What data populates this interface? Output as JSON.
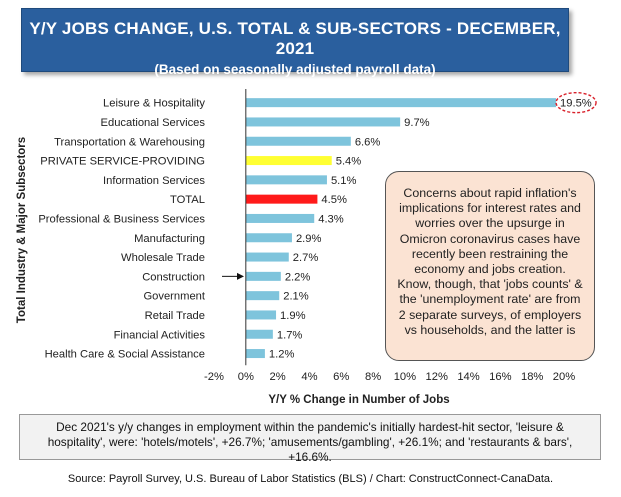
{
  "header": {
    "title": "Y/Y JOBS CHANGE, U.S. TOTAL & SUB-SECTORS - DECEMBER, 2021",
    "subtitle": "(Based on seasonally adjusted payroll data)"
  },
  "chart_data": {
    "type": "bar",
    "orientation": "horizontal",
    "categories": [
      "Leisure & Hospitality",
      "Educational Services",
      "Transportation & Warehousing",
      "PRIVATE SERVICE-PROVIDING",
      "Information Services",
      "TOTAL",
      "Professional & Business Services",
      "Manufacturing",
      "Wholesale Trade",
      "Construction",
      "Government",
      "Retail Trade",
      "Financial Activities",
      "Health Care & Social Assistance"
    ],
    "values": [
      19.5,
      9.7,
      6.6,
      5.4,
      5.1,
      4.5,
      4.3,
      2.9,
      2.7,
      2.2,
      2.1,
      1.9,
      1.7,
      1.2
    ],
    "value_labels": [
      "19.5%",
      "9.7%",
      "6.6%",
      "5.4%",
      "5.1%",
      "4.5%",
      "4.3%",
      "2.9%",
      "2.7%",
      "2.2%",
      "2.1%",
      "1.9%",
      "1.7%",
      "1.2%"
    ],
    "bar_colors": [
      "#7ec4dc",
      "#7ec4dc",
      "#7ec4dc",
      "#ffff33",
      "#7ec4dc",
      "#ff1a1a",
      "#7ec4dc",
      "#7ec4dc",
      "#7ec4dc",
      "#7ec4dc",
      "#7ec4dc",
      "#7ec4dc",
      "#7ec4dc",
      "#7ec4dc"
    ],
    "xlim": [
      -2,
      20
    ],
    "xticks": [
      "-2%",
      "0%",
      "2%",
      "4%",
      "6%",
      "8%",
      "10%",
      "12%",
      "14%",
      "16%",
      "18%",
      "20%"
    ],
    "xlabel": "Y/Y % Change in Number of Jobs",
    "ylabel": "Total Industry & Major Subsectors",
    "grid": false,
    "highlighted_category": "Leisure & Hospitality",
    "arrow_category": "Construction"
  },
  "callout": {
    "text": "Concerns about rapid inflation's implications for interest rates and worries over the upsurge in Omicron coronavirus cases have recently been restraining the economy and jobs creation. Know, though, that 'jobs counts' & the 'unemployment rate' are from 2 separate surveys, of employers vs households, and the latter is"
  },
  "note": {
    "text": "Dec 2021's y/y changes in employment within the pandemic's initially hardest-hit sector, 'leisure & hospitality', were: 'hotels/motels', +26.7%; 'amusements/gambling', +26.1%; and 'restaurants & bars', +16.6%."
  },
  "source": {
    "text": "Source: Payroll Survey, U.S. Bureau of Labor Statistics (BLS) / Chart: ConstructConnect-CanaData."
  },
  "colors": {
    "header_bg": "#2a5f9e",
    "bar_default": "#7ec4dc",
    "bar_private": "#ffff33",
    "bar_total": "#ff1a1a",
    "callout_bg": "#fbe3d3",
    "highlight_circle": "#d9202a"
  }
}
